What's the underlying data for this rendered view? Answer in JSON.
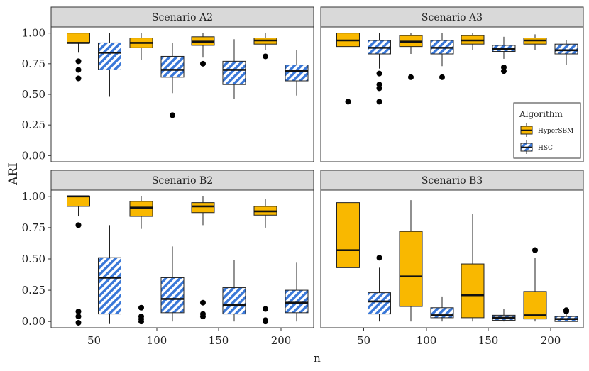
{
  "chart_data": {
    "type": "boxplot",
    "layout": "facet-2x2",
    "xlabel": "n",
    "ylabel": "ARI",
    "ylim": [
      -0.05,
      1.05
    ],
    "yticks": [
      0.0,
      0.25,
      0.5,
      0.75,
      1.0
    ],
    "ytick_labels": [
      "0.00",
      "0.25",
      "0.50",
      "0.75",
      "1.00"
    ],
    "categories": [
      "50",
      "100",
      "150",
      "200"
    ],
    "legend": {
      "title": "Algorithm",
      "placement": "right, inside top-right panel",
      "entries": [
        "HyperSBM",
        "HSC"
      ]
    },
    "series_colors": {
      "HyperSBM": "#f9b800",
      "HSC": "#3a78d8"
    },
    "panels": [
      {
        "title": "Scenario A2",
        "series": [
          {
            "name": "HyperSBM",
            "boxes": [
              {
                "n": "50",
                "whislo": 0.84,
                "q1": 0.92,
                "med": 0.92,
                "q3": 1.0,
                "whishi": 1.0,
                "outliers": [
                  0.77,
                  0.7,
                  0.63
                ]
              },
              {
                "n": "100",
                "whislo": 0.78,
                "q1": 0.88,
                "med": 0.92,
                "q3": 0.96,
                "whishi": 1.0,
                "outliers": []
              },
              {
                "n": "150",
                "whislo": 0.8,
                "q1": 0.9,
                "med": 0.93,
                "q3": 0.97,
                "whishi": 1.0,
                "outliers": [
                  0.75
                ]
              },
              {
                "n": "200",
                "whislo": 0.86,
                "q1": 0.91,
                "med": 0.94,
                "q3": 0.96,
                "whishi": 1.0,
                "outliers": [
                  0.81
                ]
              }
            ]
          },
          {
            "name": "HSC",
            "boxes": [
              {
                "n": "50",
                "whislo": 0.48,
                "q1": 0.7,
                "med": 0.84,
                "q3": 0.92,
                "whishi": 1.0,
                "outliers": []
              },
              {
                "n": "100",
                "whislo": 0.51,
                "q1": 0.64,
                "med": 0.7,
                "q3": 0.81,
                "whishi": 0.92,
                "outliers": [
                  0.33
                ]
              },
              {
                "n": "150",
                "whislo": 0.46,
                "q1": 0.58,
                "med": 0.7,
                "q3": 0.77,
                "whishi": 0.95,
                "outliers": []
              },
              {
                "n": "200",
                "whislo": 0.49,
                "q1": 0.61,
                "med": 0.69,
                "q3": 0.74,
                "whishi": 0.86,
                "outliers": []
              }
            ]
          }
        ]
      },
      {
        "title": "Scenario A3",
        "series": [
          {
            "name": "HyperSBM",
            "boxes": [
              {
                "n": "50",
                "whislo": 0.73,
                "q1": 0.89,
                "med": 0.94,
                "q3": 1.0,
                "whishi": 1.0,
                "outliers": [
                  0.44
                ]
              },
              {
                "n": "100",
                "whislo": 0.83,
                "q1": 0.89,
                "med": 0.93,
                "q3": 0.98,
                "whishi": 1.0,
                "outliers": [
                  0.64
                ]
              },
              {
                "n": "150",
                "whislo": 0.86,
                "q1": 0.91,
                "med": 0.94,
                "q3": 0.98,
                "whishi": 1.0,
                "outliers": []
              },
              {
                "n": "200",
                "whislo": 0.86,
                "q1": 0.91,
                "med": 0.94,
                "q3": 0.96,
                "whishi": 0.99,
                "outliers": []
              }
            ]
          },
          {
            "name": "HSC",
            "boxes": [
              {
                "n": "50",
                "whislo": 0.71,
                "q1": 0.83,
                "med": 0.88,
                "q3": 0.94,
                "whishi": 1.0,
                "outliers": [
                  0.67,
                  0.58,
                  0.55,
                  0.44
                ]
              },
              {
                "n": "100",
                "whislo": 0.73,
                "q1": 0.83,
                "med": 0.88,
                "q3": 0.94,
                "whishi": 1.0,
                "outliers": [
                  0.64
                ]
              },
              {
                "n": "150",
                "whislo": 0.79,
                "q1": 0.85,
                "med": 0.87,
                "q3": 0.9,
                "whishi": 0.97,
                "outliers": [
                  0.72,
                  0.69
                ]
              },
              {
                "n": "200",
                "whislo": 0.74,
                "q1": 0.83,
                "med": 0.86,
                "q3": 0.91,
                "whishi": 0.94,
                "outliers": []
              }
            ]
          }
        ]
      },
      {
        "title": "Scenario B2",
        "series": [
          {
            "name": "HyperSBM",
            "boxes": [
              {
                "n": "50",
                "whislo": 0.84,
                "q1": 0.92,
                "med": 1.0,
                "q3": 1.0,
                "whishi": 1.0,
                "outliers": [
                  0.77,
                  0.08,
                  0.04,
                  -0.01
                ]
              },
              {
                "n": "100",
                "whislo": 0.74,
                "q1": 0.84,
                "med": 0.91,
                "q3": 0.96,
                "whishi": 1.0,
                "outliers": [
                  0.11,
                  0.04,
                  0.02,
                  0.0
                ]
              },
              {
                "n": "150",
                "whislo": 0.77,
                "q1": 0.87,
                "med": 0.92,
                "q3": 0.95,
                "whishi": 1.0,
                "outliers": [
                  0.15,
                  0.06,
                  0.04
                ]
              },
              {
                "n": "200",
                "whislo": 0.75,
                "q1": 0.85,
                "med": 0.88,
                "q3": 0.92,
                "whishi": 0.98,
                "outliers": [
                  0.1,
                  0.01,
                  0.0
                ]
              }
            ]
          },
          {
            "name": "HSC",
            "boxes": [
              {
                "n": "50",
                "whislo": -0.02,
                "q1": 0.06,
                "med": 0.35,
                "q3": 0.51,
                "whishi": 0.77,
                "outliers": []
              },
              {
                "n": "100",
                "whislo": 0.0,
                "q1": 0.07,
                "med": 0.18,
                "q3": 0.35,
                "whishi": 0.6,
                "outliers": []
              },
              {
                "n": "150",
                "whislo": 0.0,
                "q1": 0.06,
                "med": 0.13,
                "q3": 0.27,
                "whishi": 0.49,
                "outliers": []
              },
              {
                "n": "200",
                "whislo": 0.0,
                "q1": 0.07,
                "med": 0.15,
                "q3": 0.25,
                "whishi": 0.47,
                "outliers": []
              }
            ]
          }
        ]
      },
      {
        "title": "Scenario B3",
        "series": [
          {
            "name": "HyperSBM",
            "boxes": [
              {
                "n": "50",
                "whislo": 0.0,
                "q1": 0.43,
                "med": 0.57,
                "q3": 0.95,
                "whishi": 1.0,
                "outliers": []
              },
              {
                "n": "100",
                "whislo": 0.0,
                "q1": 0.12,
                "med": 0.36,
                "q3": 0.72,
                "whishi": 0.97,
                "outliers": []
              },
              {
                "n": "150",
                "whislo": 0.0,
                "q1": 0.03,
                "med": 0.21,
                "q3": 0.46,
                "whishi": 0.86,
                "outliers": []
              },
              {
                "n": "200",
                "whislo": 0.0,
                "q1": 0.02,
                "med": 0.05,
                "q3": 0.24,
                "whishi": 0.51,
                "outliers": [
                  0.57,
                  0.57
                ]
              }
            ]
          },
          {
            "name": "HSC",
            "boxes": [
              {
                "n": "50",
                "whislo": 0.0,
                "q1": 0.06,
                "med": 0.16,
                "q3": 0.23,
                "whishi": 0.43,
                "outliers": [
                  0.51
                ]
              },
              {
                "n": "100",
                "whislo": 0.0,
                "q1": 0.03,
                "med": 0.05,
                "q3": 0.11,
                "whishi": 0.2,
                "outliers": []
              },
              {
                "n": "150",
                "whislo": 0.0,
                "q1": 0.01,
                "med": 0.03,
                "q3": 0.05,
                "whishi": 0.1,
                "outliers": []
              },
              {
                "n": "200",
                "whislo": 0.0,
                "q1": 0.0,
                "med": 0.02,
                "q3": 0.04,
                "whishi": 0.08,
                "outliers": [
                  0.09,
                  0.08
                ]
              }
            ]
          }
        ]
      }
    ]
  }
}
